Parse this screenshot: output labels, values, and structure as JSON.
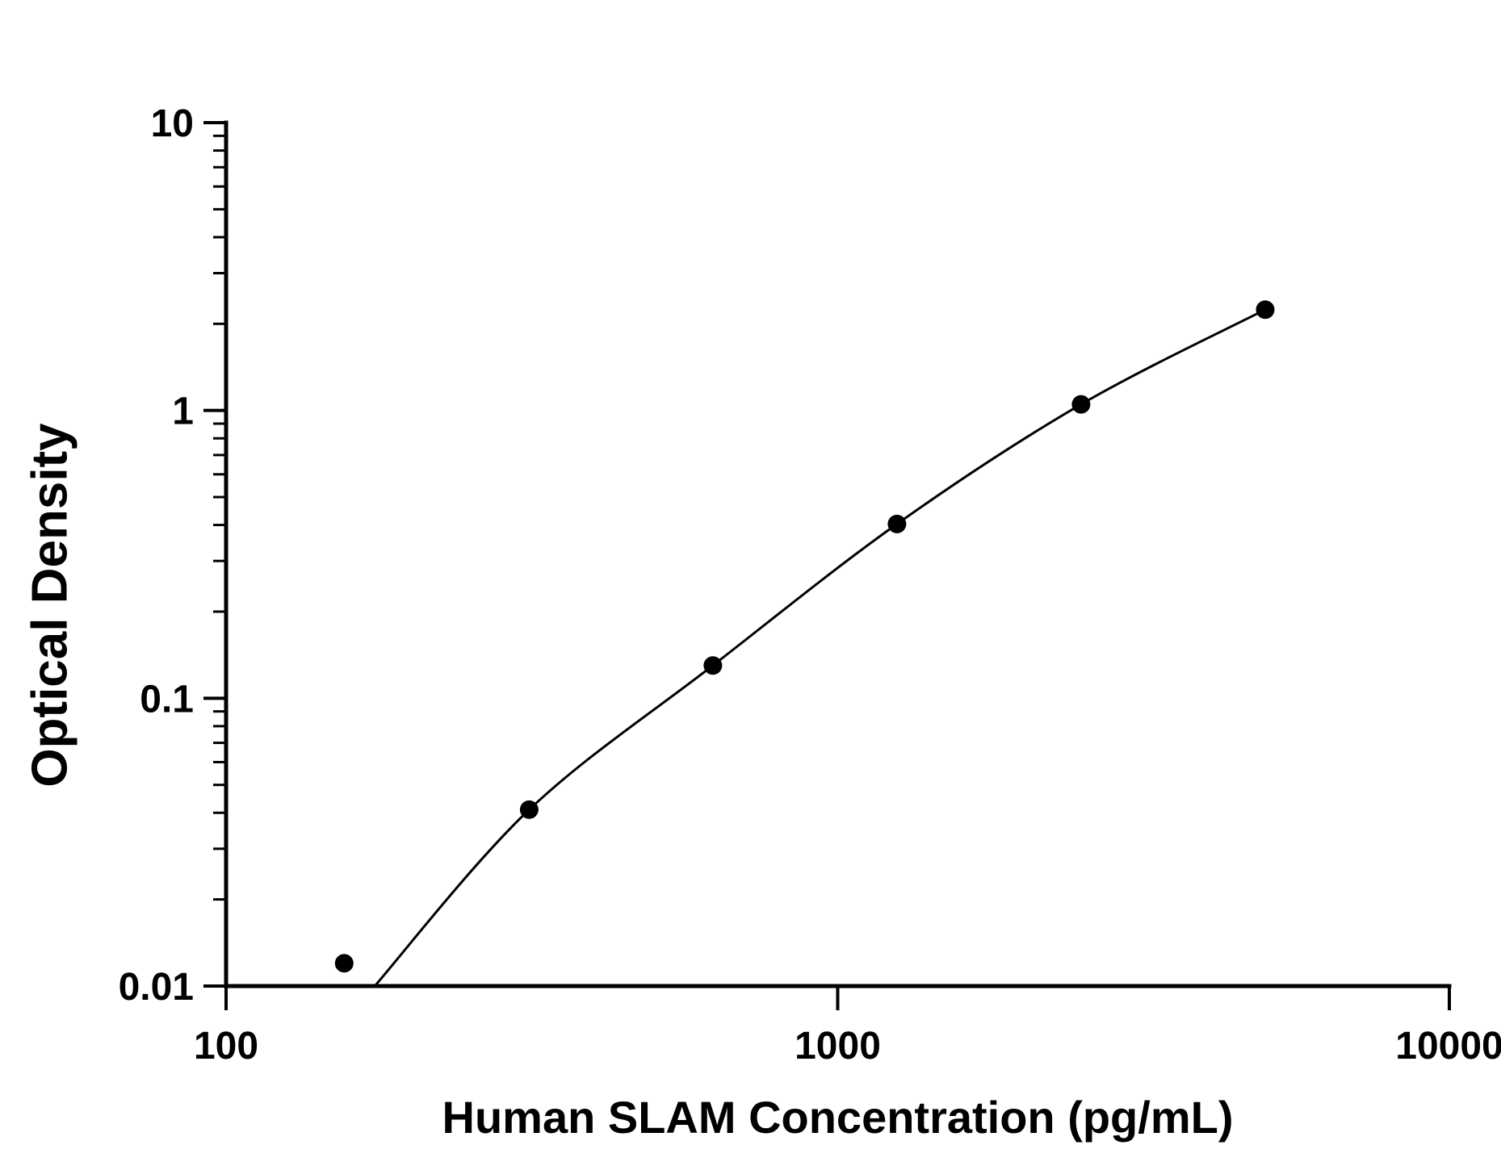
{
  "page": {
    "background_color": "#ffffff",
    "text_color": "#000000"
  },
  "chart_data": {
    "type": "scatter",
    "title": "",
    "xlabel": "Human SLAM Concentration (pg/mL)",
    "ylabel": "Optical Density",
    "x_scale": "log",
    "y_scale": "log",
    "xlim": [
      100,
      10000
    ],
    "ylim": [
      0.01,
      10
    ],
    "grid": "off",
    "legend": "none",
    "x_ticks": [
      {
        "value": 100,
        "label": "100"
      },
      {
        "value": 1000,
        "label": "1000"
      },
      {
        "value": 10000,
        "label": "10000"
      }
    ],
    "y_ticks": [
      {
        "value": 0.01,
        "label": "0.01"
      },
      {
        "value": 0.1,
        "label": "0.1"
      },
      {
        "value": 1,
        "label": "1"
      },
      {
        "value": 10,
        "label": "10"
      }
    ],
    "y_minor_ticks": true,
    "x_minor_ticks": false,
    "series": [
      {
        "name": "standard-curve-points",
        "x": [
          156,
          313,
          625,
          1250,
          2500,
          5000
        ],
        "y": [
          0.012,
          0.041,
          0.13,
          0.403,
          1.05,
          2.24
        ]
      }
    ],
    "fit_curve_points": [
      [
        175,
        0.01
      ],
      [
        313,
        0.041
      ],
      [
        625,
        0.13
      ],
      [
        1250,
        0.403
      ],
      [
        2500,
        1.05
      ],
      [
        5000,
        2.24
      ]
    ],
    "line_color": "#000000",
    "marker_color": "#000000",
    "axis_color": "#000000"
  }
}
